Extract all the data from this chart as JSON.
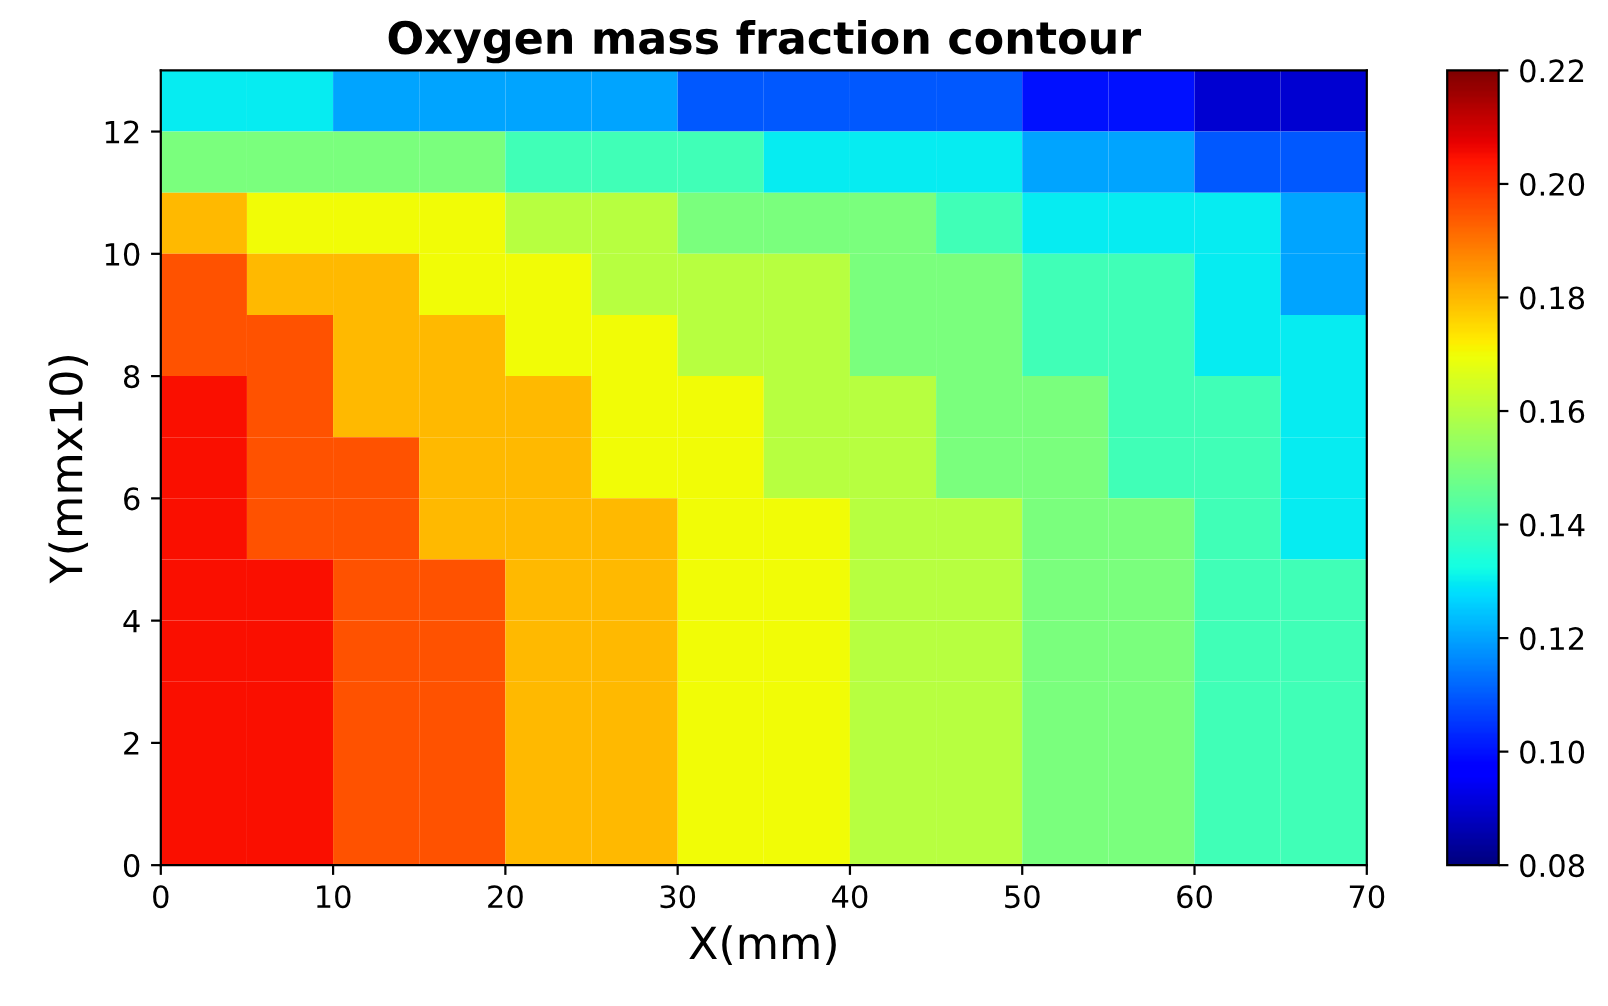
{
  "chart_data": {
    "type": "heatmap",
    "title": "Oxygen mass fraction contour",
    "xlabel": "X(mm)",
    "ylabel": "Y(mmx10)",
    "x": [
      2.5,
      7.5,
      12.5,
      17.5,
      22.5,
      27.5,
      32.5,
      37.5,
      42.5,
      47.5,
      52.5,
      57.5,
      62.5,
      67.5
    ],
    "cells": [
      [
        0.13,
        0.13,
        0.12,
        0.12,
        0.12,
        0.12,
        0.11,
        0.11,
        0.11,
        0.11,
        0.1,
        0.1,
        0.09,
        0.09
      ],
      [
        0.15,
        0.15,
        0.15,
        0.15,
        0.14,
        0.14,
        0.14,
        0.13,
        0.13,
        0.13,
        0.12,
        0.12,
        0.11,
        0.11
      ],
      [
        0.18,
        0.17,
        0.17,
        0.17,
        0.16,
        0.16,
        0.15,
        0.15,
        0.15,
        0.14,
        0.13,
        0.13,
        0.13,
        0.12
      ],
      [
        0.195,
        0.18,
        0.18,
        0.17,
        0.17,
        0.16,
        0.16,
        0.16,
        0.15,
        0.15,
        0.14,
        0.14,
        0.13,
        0.12
      ],
      [
        0.195,
        0.195,
        0.18,
        0.18,
        0.17,
        0.17,
        0.16,
        0.16,
        0.15,
        0.15,
        0.14,
        0.14,
        0.13,
        0.13
      ],
      [
        0.205,
        0.195,
        0.18,
        0.18,
        0.18,
        0.17,
        0.17,
        0.16,
        0.16,
        0.15,
        0.15,
        0.14,
        0.14,
        0.13
      ],
      [
        0.205,
        0.195,
        0.195,
        0.18,
        0.18,
        0.17,
        0.17,
        0.16,
        0.16,
        0.15,
        0.15,
        0.14,
        0.14,
        0.13
      ],
      [
        0.205,
        0.195,
        0.195,
        0.18,
        0.18,
        0.18,
        0.17,
        0.17,
        0.16,
        0.16,
        0.15,
        0.15,
        0.14,
        0.13
      ],
      [
        0.205,
        0.205,
        0.195,
        0.195,
        0.18,
        0.18,
        0.17,
        0.17,
        0.16,
        0.16,
        0.15,
        0.15,
        0.14,
        0.14
      ],
      [
        0.205,
        0.205,
        0.195,
        0.195,
        0.18,
        0.18,
        0.17,
        0.17,
        0.16,
        0.16,
        0.15,
        0.15,
        0.14,
        0.14
      ],
      [
        0.205,
        0.205,
        0.195,
        0.195,
        0.18,
        0.18,
        0.17,
        0.17,
        0.16,
        0.16,
        0.15,
        0.15,
        0.14,
        0.14
      ],
      [
        0.205,
        0.205,
        0.195,
        0.195,
        0.18,
        0.18,
        0.17,
        0.17,
        0.16,
        0.16,
        0.15,
        0.15,
        0.14,
        0.14
      ],
      [
        0.205,
        0.205,
        0.195,
        0.195,
        0.18,
        0.18,
        0.17,
        0.17,
        0.16,
        0.16,
        0.15,
        0.15,
        0.14,
        0.14
      ]
    ],
    "xlim": [
      0,
      70
    ],
    "xticks": [
      0,
      10,
      20,
      30,
      40,
      50,
      60,
      70
    ],
    "ylim": [
      0,
      13
    ],
    "yticks": [
      0,
      2,
      4,
      6,
      8,
      10,
      12
    ],
    "clim": [
      0.08,
      0.22
    ],
    "cticks": [
      0.08,
      {
        "value": 0.1,
        "label": "0.10"
      },
      0.12,
      0.14,
      0.16,
      0.18,
      {
        "value": 0.2,
        "label": "0.20"
      },
      0.22
    ]
  }
}
